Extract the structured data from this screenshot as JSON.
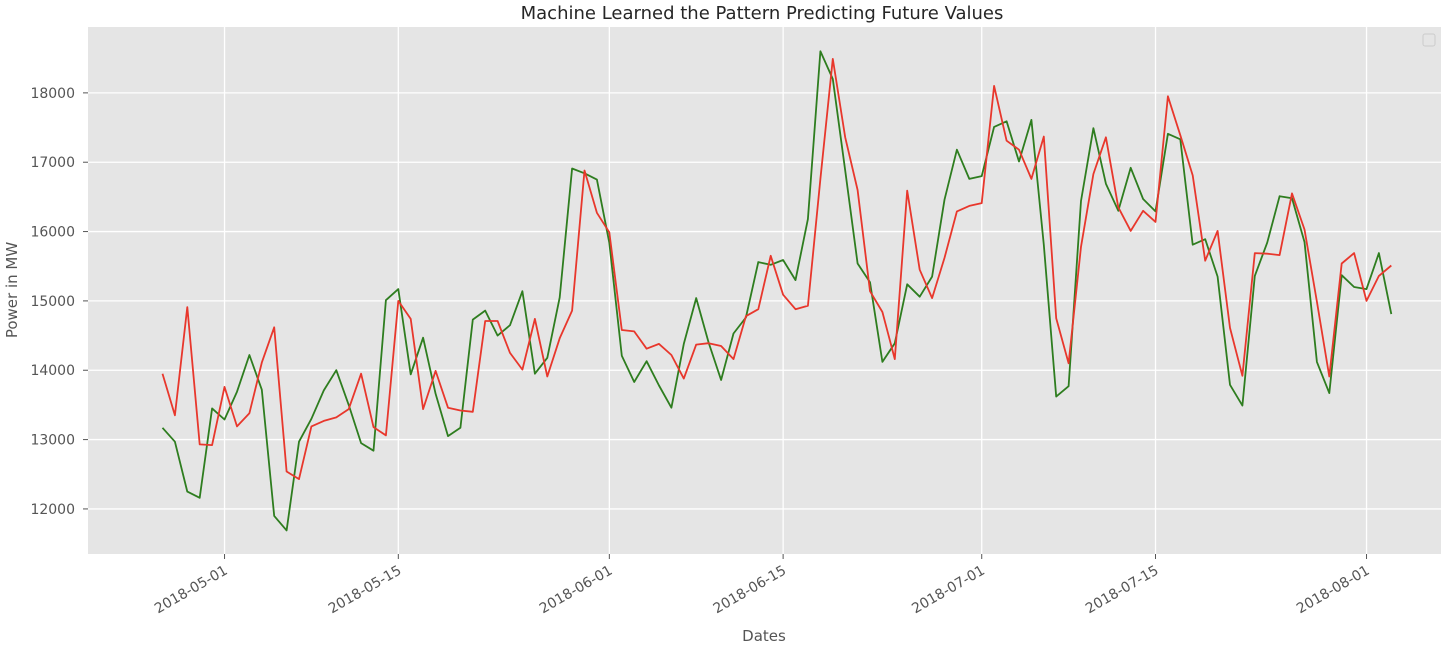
{
  "chart_data": {
    "type": "line",
    "title": "Machine Learned the Pattern Predicting Future Values",
    "xlabel": "Dates",
    "ylabel": "Power in MW",
    "ylim": [
      11350,
      18950
    ],
    "xlim": [
      "2018-04-20",
      "2018-08-07"
    ],
    "x_start": "2018-04-26",
    "yticks": [
      12000,
      13000,
      14000,
      15000,
      16000,
      17000,
      18000
    ],
    "xticks": [
      "2018-05-01",
      "2018-05-15",
      "2018-06-01",
      "2018-06-15",
      "2018-07-01",
      "2018-07-15",
      "2018-08-01"
    ],
    "grid": true,
    "legend": "top-right (empty)",
    "series": [
      {
        "color": "#2e7d1f",
        "values": [
          13170,
          12970,
          12250,
          12160,
          13450,
          13290,
          13690,
          14220,
          13720,
          11900,
          11690,
          12970,
          13300,
          13710,
          14000,
          13500,
          12950,
          12840,
          15010,
          15170,
          13940,
          14470,
          13660,
          13050,
          13170,
          14730,
          14860,
          14500,
          14650,
          15140,
          13950,
          14180,
          15050,
          16910,
          16840,
          16750,
          15840,
          14210,
          13830,
          14130,
          13780,
          13460,
          14380,
          15040,
          14400,
          13860,
          14530,
          14760,
          15560,
          15520,
          15590,
          15300,
          16180,
          18600,
          18200,
          16880,
          15540,
          15270,
          14120,
          14390,
          15240,
          15060,
          15350,
          16460,
          17180,
          16760,
          16800,
          17510,
          17590,
          17010,
          17610,
          15810,
          13620,
          13770,
          16440,
          17490,
          16690,
          16300,
          16920,
          16470,
          16290,
          17410,
          17330,
          15810,
          15890,
          15350,
          13790,
          13490,
          15360,
          15840,
          16510,
          16480,
          15850,
          14120,
          13670,
          15370,
          15200,
          15170,
          15690,
          14810
        ]
      },
      {
        "color": "#e8372c",
        "values": [
          13950,
          13350,
          14910,
          12930,
          12920,
          13760,
          13190,
          13380,
          14110,
          14620,
          12540,
          12430,
          13190,
          13270,
          13320,
          13440,
          13950,
          13180,
          13060,
          15000,
          14740,
          13440,
          13990,
          13460,
          13420,
          13400,
          14710,
          14710,
          14250,
          14010,
          14740,
          13910,
          14460,
          14860,
          16880,
          16270,
          15990,
          14580,
          14560,
          14310,
          14380,
          14220,
          13880,
          14370,
          14390,
          14350,
          14160,
          14780,
          14880,
          15650,
          15090,
          14880,
          14930,
          16760,
          18490,
          17360,
          16600,
          15140,
          14840,
          14160,
          16590,
          15450,
          15040,
          15620,
          16290,
          16370,
          16410,
          18100,
          17310,
          17180,
          16760,
          17370,
          14750,
          14100,
          15780,
          16830,
          17360,
          16350,
          16010,
          16300,
          16140,
          17950,
          17390,
          16810,
          15580,
          16010,
          14610,
          13920,
          15690,
          15680,
          15660,
          16550,
          16030,
          14990,
          13910,
          15540,
          15690,
          15000,
          15360,
          15510
        ]
      }
    ]
  }
}
